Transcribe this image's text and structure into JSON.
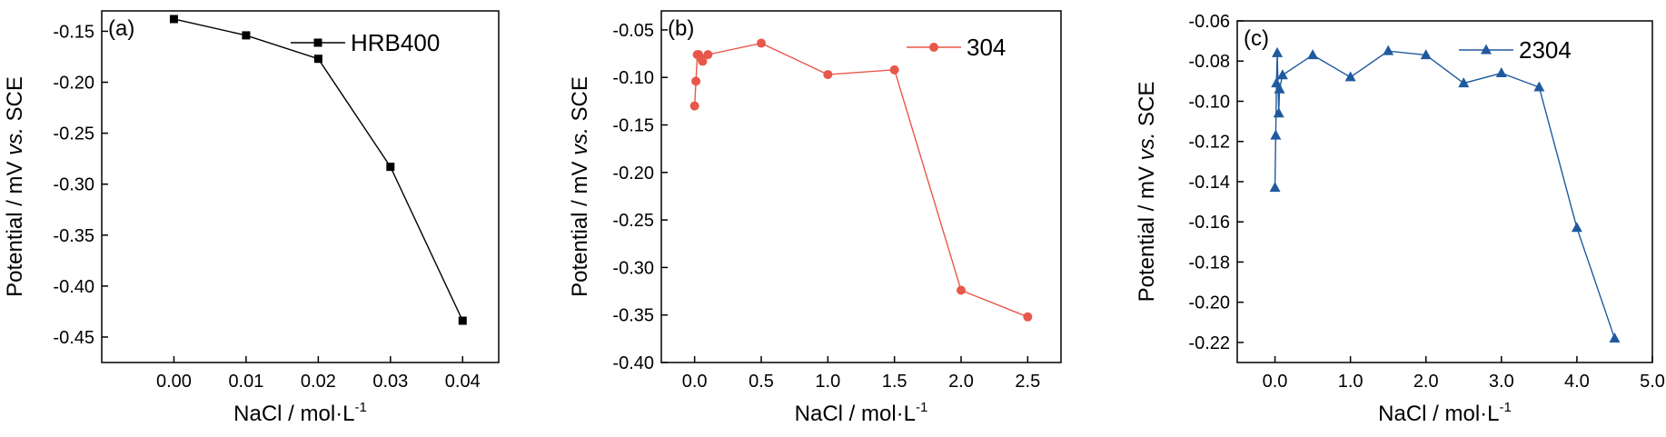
{
  "chart_data": [
    {
      "type": "line",
      "panel_label": "(a)",
      "xlabel": "NaCl / mol·L",
      "xlabel_sup": "-1",
      "ylabel_parts": [
        "Potential / mV ",
        "vs.",
        " SCE"
      ],
      "xlim": [
        -0.01,
        0.045
      ],
      "ylim": [
        -0.475,
        -0.13
      ],
      "xticks": [
        0.0,
        0.01,
        0.02,
        0.03,
        0.04
      ],
      "xtick_labels": [
        "0.00",
        "0.01",
        "0.02",
        "0.03",
        "0.04"
      ],
      "yticks": [
        -0.45,
        -0.4,
        -0.35,
        -0.3,
        -0.25,
        -0.2,
        -0.15
      ],
      "ytick_labels": [
        "-0.45",
        "-0.40",
        "-0.35",
        "-0.30",
        "-0.25",
        "-0.20",
        "-0.15"
      ],
      "legend_position": "top-right",
      "series": [
        {
          "name": "HRB400",
          "marker": "square",
          "color": "#000000",
          "x": [
            0.0,
            0.01,
            0.02,
            0.03,
            0.04
          ],
          "y": [
            -0.138,
            -0.154,
            -0.177,
            -0.283,
            -0.434
          ]
        }
      ]
    },
    {
      "type": "line",
      "panel_label": "(b)",
      "xlabel": "NaCl / mol·L",
      "xlabel_sup": "-1",
      "ylabel_parts": [
        "Potential / mV ",
        "vs.",
        " SCE"
      ],
      "xlim": [
        -0.25,
        2.75
      ],
      "ylim": [
        -0.4,
        -0.03
      ],
      "xticks": [
        0.0,
        0.5,
        1.0,
        1.5,
        2.0,
        2.5
      ],
      "xtick_labels": [
        "0.0",
        "0.5",
        "1.0",
        "1.5",
        "2.0",
        "2.5"
      ],
      "yticks": [
        -0.4,
        -0.35,
        -0.3,
        -0.25,
        -0.2,
        -0.15,
        -0.1,
        -0.05
      ],
      "ytick_labels": [
        "-0.40",
        "-0.35",
        "-0.30",
        "-0.25",
        "-0.20",
        "-0.15",
        "-0.10",
        "-0.05"
      ],
      "legend_position": "top-right",
      "series": [
        {
          "name": "304",
          "marker": "circle",
          "color": "#e8574a",
          "x": [
            0.0,
            0.01,
            0.02,
            0.03,
            0.05,
            0.06,
            0.1,
            0.5,
            1.0,
            1.5,
            2.0,
            2.5
          ],
          "y": [
            -0.13,
            -0.104,
            -0.076,
            -0.076,
            -0.08,
            -0.083,
            -0.076,
            -0.064,
            -0.097,
            -0.092,
            -0.324,
            -0.352
          ]
        }
      ]
    },
    {
      "type": "line",
      "panel_label": "(c)",
      "xlabel": "NaCl / mol·L",
      "xlabel_sup": "-1",
      "ylabel_parts": [
        "Potential / mV ",
        "vs.",
        " SCE"
      ],
      "xlim": [
        -0.5,
        5.0
      ],
      "ylim": [
        -0.23,
        -0.06
      ],
      "xticks": [
        0.0,
        1.0,
        2.0,
        3.0,
        4.0,
        5.0
      ],
      "xtick_labels": [
        "0.0",
        "1.0",
        "2.0",
        "3.0",
        "4.0",
        "5.0"
      ],
      "yticks": [
        -0.22,
        -0.2,
        -0.18,
        -0.16,
        -0.14,
        -0.12,
        -0.1,
        -0.08,
        -0.06
      ],
      "ytick_labels": [
        "-0.22",
        "-0.20",
        "-0.18",
        "-0.16",
        "-0.14",
        "-0.12",
        "-0.10",
        "-0.08",
        "-0.06"
      ],
      "legend_position": "top-right",
      "series": [
        {
          "name": "2304",
          "marker": "triangle",
          "color": "#1f5a9e",
          "x": [
            0.0,
            0.01,
            0.02,
            0.03,
            0.05,
            0.06,
            0.1,
            0.5,
            1.0,
            1.5,
            2.0,
            2.5,
            3.0,
            3.5,
            4.0,
            4.5
          ],
          "y": [
            -0.143,
            -0.117,
            -0.091,
            -0.076,
            -0.106,
            -0.094,
            -0.087,
            -0.077,
            -0.088,
            -0.075,
            -0.077,
            -0.091,
            -0.086,
            -0.093,
            -0.163,
            -0.218
          ]
        }
      ]
    }
  ]
}
